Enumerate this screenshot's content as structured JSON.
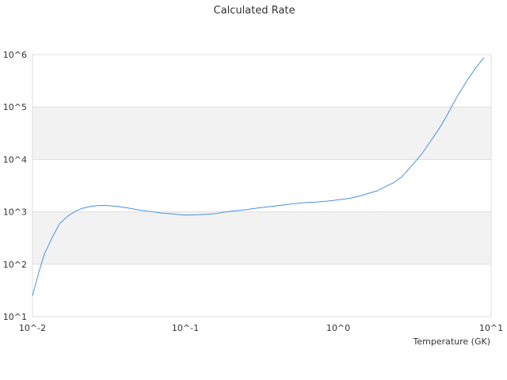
{
  "chart_data": {
    "type": "line",
    "title": "Calculated Rate",
    "xlabel": "Temperature (GK)",
    "ylabel": "",
    "x_scale": "log",
    "y_scale": "log",
    "xlim": [
      0.01,
      10
    ],
    "ylim": [
      10,
      1000000
    ],
    "x_ticks": [
      0.01,
      0.1,
      1,
      10
    ],
    "x_tick_labels": [
      "10^-2",
      "10^-1",
      "10^0",
      "10^1"
    ],
    "y_ticks": [
      10,
      100,
      1000,
      10000,
      100000,
      1000000
    ],
    "y_tick_labels": [
      "10^1",
      "10^2",
      "10^3",
      "10^4",
      "10^5",
      "10^6"
    ],
    "grid": true,
    "band_fill": "#f2f2f2",
    "grid_color": "#dddddd",
    "series": [
      {
        "name": "",
        "color": "#4a90e2",
        "x": [
          0.01,
          0.011,
          0.012,
          0.0135,
          0.015,
          0.017,
          0.019,
          0.021,
          0.024,
          0.027,
          0.031,
          0.036,
          0.042,
          0.05,
          0.06,
          0.07,
          0.08,
          0.09,
          0.1,
          0.12,
          0.14,
          0.16,
          0.18,
          0.2,
          0.25,
          0.3,
          0.35,
          0.4,
          0.5,
          0.6,
          0.7,
          0.8,
          0.9,
          1.0,
          1.2,
          1.4,
          1.6,
          1.8,
          2.0,
          2.3,
          2.6,
          3.0,
          3.5,
          4.0,
          4.5,
          5.0,
          5.5,
          6.0,
          7.0,
          8.0,
          9.0
        ],
        "values": [
          25,
          70,
          160,
          330,
          590,
          830,
          1020,
          1160,
          1270,
          1320,
          1320,
          1270,
          1190,
          1080,
          1010,
          950,
          920,
          890,
          870,
          880,
          900,
          930,
          990,
          1030,
          1100,
          1190,
          1250,
          1310,
          1420,
          1500,
          1530,
          1580,
          1630,
          1700,
          1820,
          2020,
          2280,
          2520,
          2960,
          3600,
          4650,
          7400,
          12500,
          22000,
          36000,
          60000,
          100000,
          160000,
          330000,
          580000,
          880000
        ]
      }
    ]
  }
}
